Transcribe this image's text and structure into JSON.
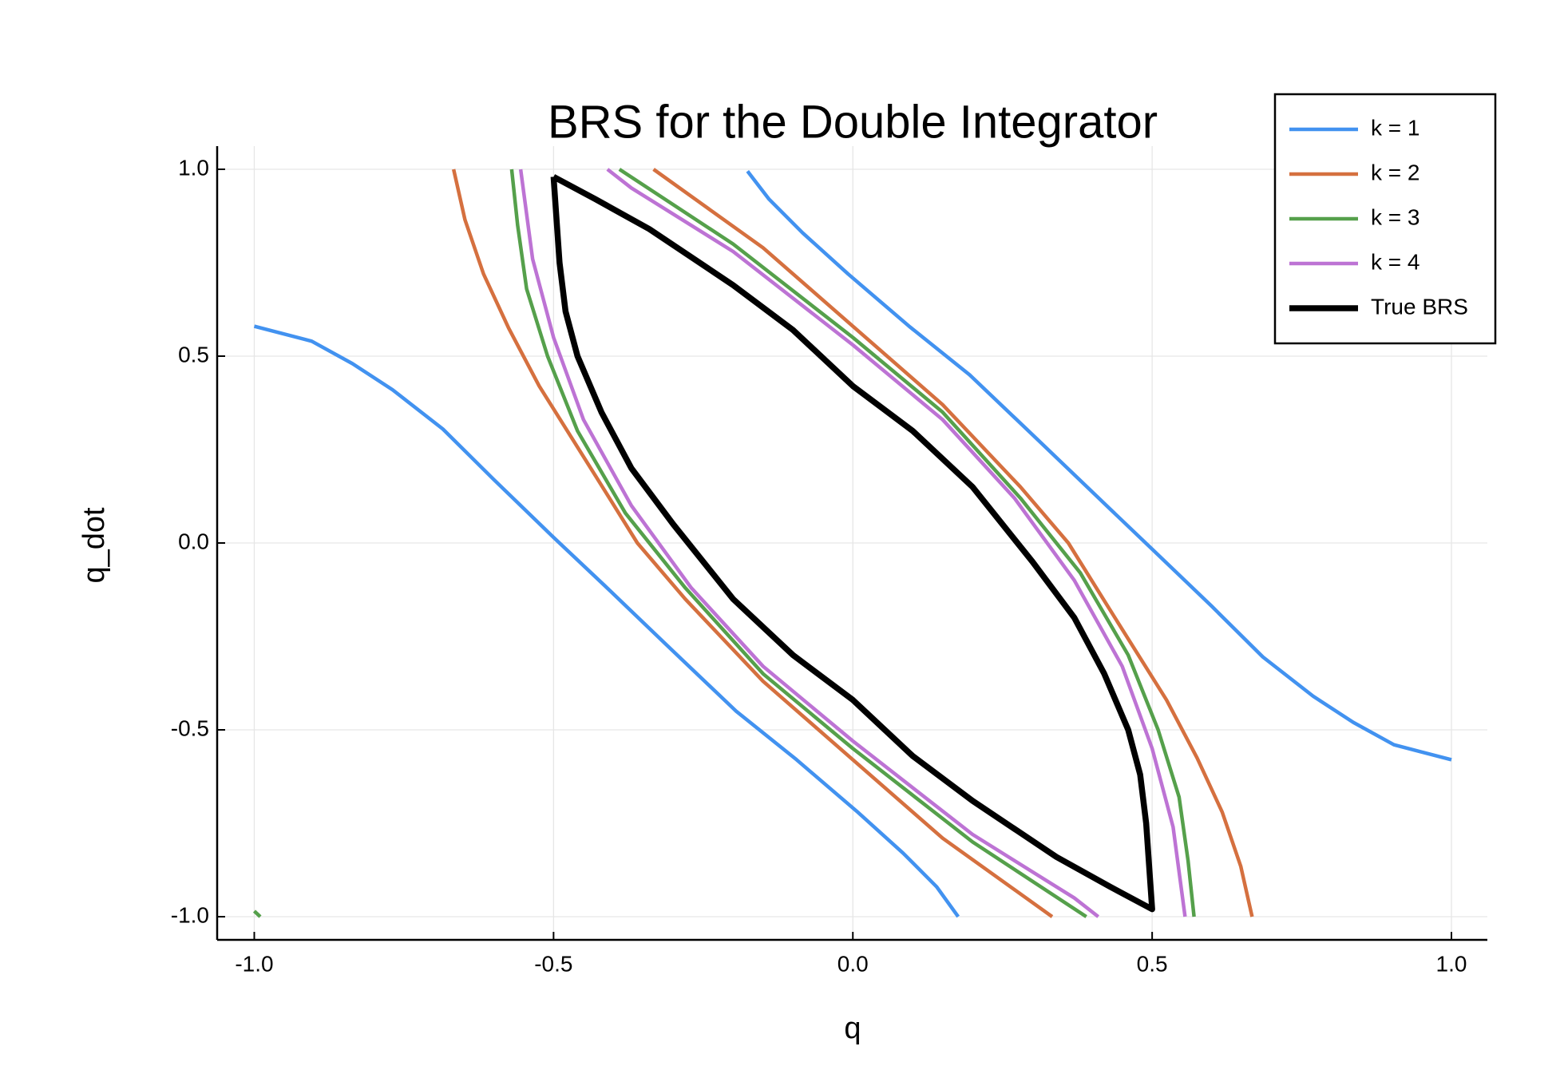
{
  "chart_data": {
    "type": "line",
    "title": "BRS for the Double Integrator",
    "x_label": "q",
    "y_label": "q_dot",
    "xlim": [
      -1.062,
      1.06
    ],
    "ylim": [
      -1.062,
      1.062
    ],
    "xticks": [
      {
        "value": -1.0,
        "label": "-1.0"
      },
      {
        "value": -0.5,
        "label": "-0.5"
      },
      {
        "value": 0,
        "label": "0.0"
      },
      {
        "value": 0.5,
        "label": "0.5"
      },
      {
        "value": 1.0,
        "label": "1.0"
      }
    ],
    "yticks": [
      {
        "value": -1.0,
        "label": "-1.0"
      },
      {
        "value": -0.5,
        "label": "-0.5"
      },
      {
        "value": 0,
        "label": "0.0"
      },
      {
        "value": 0.5,
        "label": "0.5"
      },
      {
        "value": 1.0,
        "label": "1.0"
      }
    ],
    "grid": true,
    "legend": "top-right",
    "series": [
      {
        "name": "k = 1",
        "color": "#4292f0",
        "width": 4.5,
        "x": [
          -0.176,
          -0.14,
          -0.084,
          -0.008,
          0.094,
          0.195,
          0.313,
          0.414,
          0.499,
          0.6,
          0.685,
          0.769,
          0.836,
          0.904,
          1.0,
          null,
          -1.0,
          -0.904,
          -0.836,
          -0.769,
          -0.685,
          -0.6,
          -0.5,
          -0.414,
          -0.313,
          -0.195,
          -0.094,
          0.008,
          0.084,
          0.14,
          0.176
        ],
        "values": [
          0.995,
          0.92,
          0.83,
          0.72,
          0.58,
          0.45,
          0.27,
          0.115,
          -0.015,
          -0.17,
          -0.305,
          -0.41,
          -0.48,
          -0.54,
          -0.58,
          null,
          0.58,
          0.54,
          0.48,
          0.41,
          0.305,
          0.17,
          0.015,
          -0.115,
          -0.27,
          -0.45,
          -0.58,
          -0.72,
          -0.83,
          -0.92,
          -1.0
        ]
      },
      {
        "name": "k = 2",
        "color": "#d5703f",
        "width": 4.5,
        "x": [
          -0.333,
          -0.15,
          0,
          0.15,
          0.28,
          0.36,
          0.43,
          0.524,
          0.575,
          0.617,
          0.648,
          0.667,
          null,
          0.333,
          0.15,
          0,
          -0.15,
          -0.28,
          -0.36,
          -0.43,
          -0.524,
          -0.575,
          -0.617,
          -0.648,
          -0.667
        ],
        "values": [
          1.0,
          0.79,
          0.58,
          0.37,
          0.15,
          0.0,
          -0.18,
          -0.42,
          -0.575,
          -0.72,
          -0.865,
          -1.0,
          null,
          -1.0,
          -0.79,
          -0.58,
          -0.37,
          -0.15,
          0.0,
          0.18,
          0.42,
          0.575,
          0.72,
          0.865,
          1.0
        ]
      },
      {
        "name": "k = 3",
        "color": "#55a04b",
        "width": 4.5,
        "x": [
          -0.39,
          -0.2,
          0,
          0.15,
          0.28,
          0.38,
          0.46,
          0.51,
          0.545,
          0.56,
          0.57,
          null,
          0.39,
          0.2,
          0,
          -0.15,
          -0.28,
          -0.38,
          -0.46,
          -0.51,
          -0.545,
          -0.56,
          -0.57,
          null,
          -1.0,
          -0.99
        ],
        "values": [
          1.0,
          0.8,
          0.55,
          0.35,
          0.12,
          -0.08,
          -0.3,
          -0.5,
          -0.68,
          -0.85,
          -1.0,
          null,
          -1.0,
          -0.8,
          -0.55,
          -0.35,
          -0.12,
          0.08,
          0.3,
          0.5,
          0.68,
          0.85,
          1.0,
          null,
          -0.985,
          -1.0
        ]
      },
      {
        "name": "k = 4",
        "color": "#bd73d4",
        "width": 4.5,
        "x": [
          -0.41,
          -0.37,
          -0.2,
          0,
          0.15,
          0.27,
          0.37,
          0.45,
          0.5,
          0.535,
          0.555,
          null,
          0.41,
          0.37,
          0.2,
          0,
          -0.15,
          -0.27,
          -0.37,
          -0.45,
          -0.5,
          -0.535,
          -0.555
        ],
        "values": [
          1.0,
          0.95,
          0.78,
          0.53,
          0.33,
          0.12,
          -0.1,
          -0.33,
          -0.55,
          -0.76,
          -1.0,
          null,
          -1.0,
          -0.95,
          -0.78,
          -0.53,
          -0.33,
          -0.12,
          0.1,
          0.33,
          0.55,
          0.76,
          1.0
        ]
      },
      {
        "name": "True BRS",
        "color": "#000000",
        "width": 7.5,
        "x": [
          -0.5,
          -0.43,
          -0.34,
          -0.2,
          -0.1,
          0,
          0.1,
          0.2,
          0.3,
          0.37,
          0.42,
          0.46,
          0.48,
          0.49,
          0.5,
          0.43,
          0.34,
          0.2,
          0.1,
          0,
          -0.1,
          -0.2,
          -0.3,
          -0.37,
          -0.42,
          -0.46,
          -0.48,
          -0.49,
          -0.5
        ],
        "values": [
          0.98,
          0.92,
          0.84,
          0.69,
          0.57,
          0.42,
          0.3,
          0.15,
          -0.05,
          -0.2,
          -0.35,
          -0.5,
          -0.62,
          -0.75,
          -0.98,
          -0.92,
          -0.84,
          -0.69,
          -0.57,
          -0.42,
          -0.3,
          -0.15,
          0.05,
          0.2,
          0.35,
          0.5,
          0.62,
          0.75,
          0.98
        ]
      }
    ]
  }
}
